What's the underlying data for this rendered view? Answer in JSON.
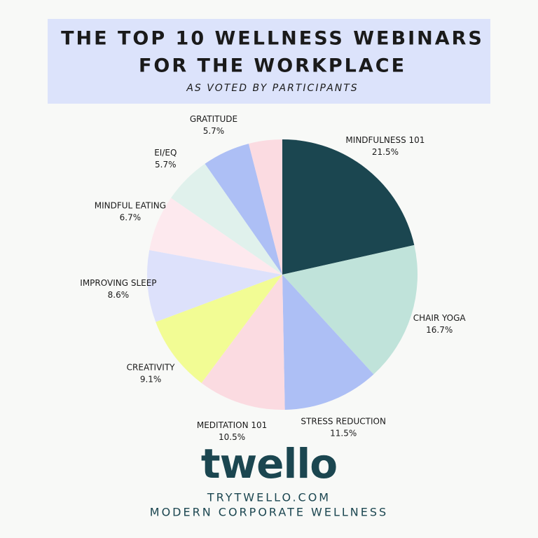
{
  "chart_data": {
    "type": "pie",
    "title": [
      "THE TOP 10 WELLNESS WEBINARS",
      "FOR THE WORKPLACE"
    ],
    "subtitle": "AS VOTED BY PARTICIPANTS",
    "categories": [
      "MINDFULNESS 101",
      "CHAIR YOGA",
      "STRESS REDUCTION",
      "MEDITATION 101",
      "CREATIVITY",
      "IMPROVING SLEEP",
      "MINDFUL EATING",
      "EI/EQ",
      "GRATITUDE",
      null
    ],
    "values": [
      21.5,
      16.7,
      11.5,
      10.5,
      9.1,
      8.6,
      6.7,
      5.7,
      5.7,
      4.0
    ],
    "value_labels": [
      "21.5%",
      "16.7%",
      "11.5%",
      "10.5%",
      "9.1%",
      "8.6%",
      "6.7%",
      "5.7%",
      "5.7%",
      null
    ],
    "colors": [
      "#1b4650",
      "#c0e3da",
      "#adbff5",
      "#fbdbe1",
      "#f2fc94",
      "#dde1fb",
      "#fde9ee",
      "#e0f1ec",
      "#adbff5",
      "#fbdbe1"
    ]
  },
  "footer": {
    "logo": "twello",
    "url": "TRYTWELLO.COM",
    "tagline": "MODERN CORPORATE WELLNESS"
  }
}
